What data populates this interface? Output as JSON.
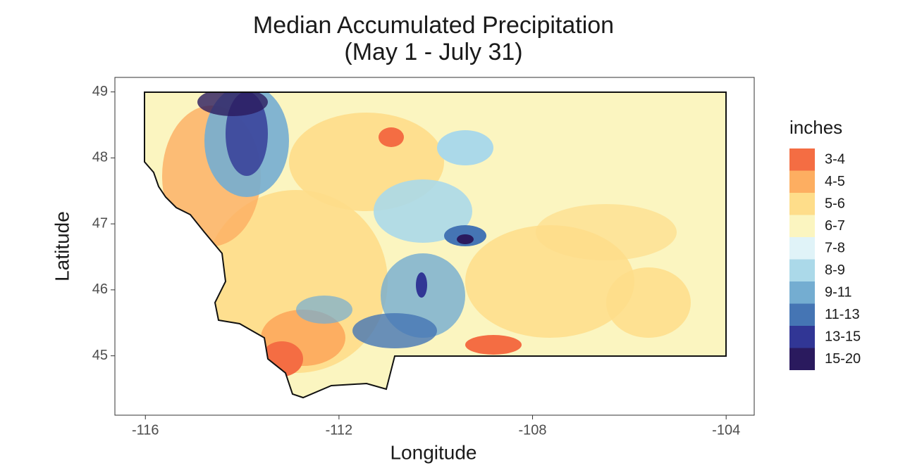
{
  "chart_data": {
    "type": "map",
    "title": [
      "Median Accumulated Precipitation",
      "(May 1 - July 31)"
    ],
    "xlabel": "Longitude",
    "ylabel": "Latitude",
    "xlim": [
      -116.63,
      -103.42
    ],
    "ylim": [
      44.1,
      49.22
    ],
    "xticks": [
      -116,
      -112,
      -108,
      -104
    ],
    "yticks": [
      45,
      46,
      47,
      48,
      49
    ],
    "grid": false,
    "legend": {
      "title": "inches",
      "position": "right",
      "items": [
        {
          "label": "3-4",
          "color": "#f46d43"
        },
        {
          "label": "4-5",
          "color": "#fdae61"
        },
        {
          "label": "5-6",
          "color": "#fedd8a"
        },
        {
          "label": "6-7",
          "color": "#fbf5c0"
        },
        {
          "label": "7-8",
          "color": "#e0f3f8"
        },
        {
          "label": "8-9",
          "color": "#abd9e9"
        },
        {
          "label": "9-11",
          "color": "#74add1"
        },
        {
          "label": "11-13",
          "color": "#4575b4"
        },
        {
          "label": "13-15",
          "color": "#313695"
        },
        {
          "label": "15-20",
          "color": "#2a1a5e"
        }
      ]
    }
  }
}
